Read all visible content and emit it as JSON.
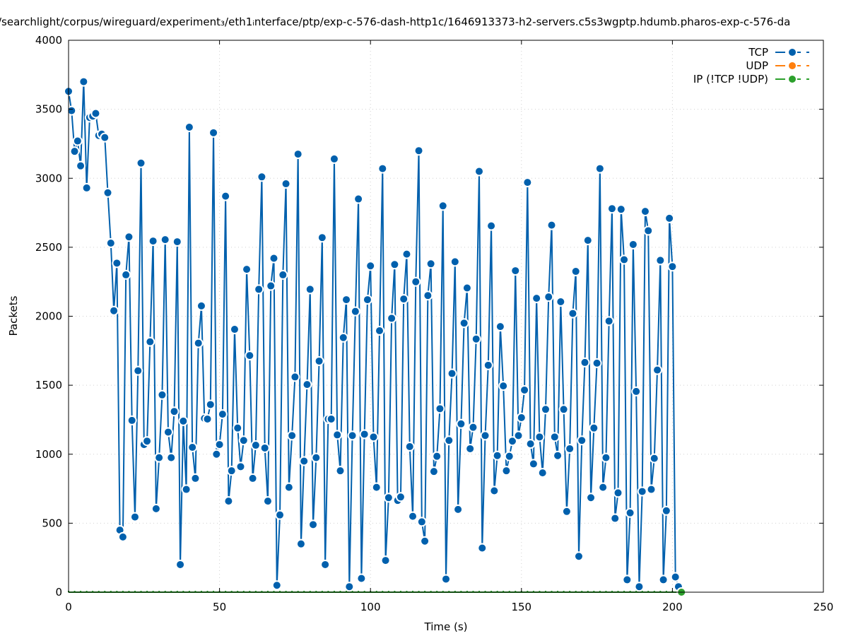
{
  "chart_data": {
    "type": "line",
    "title": "/searchlight/corpus/wireguard/experiment₃/eth1ᵢnterface/ptp/exp-c-576-dash-http1c/1646913373-h2-servers.c5s3wgptp.hdumb.pharos-exp-c-576-da",
    "xlabel": "Time (s)",
    "ylabel": "Packets",
    "xlim": [
      0,
      250
    ],
    "ylim": [
      0,
      4000
    ],
    "xticks": [
      0,
      50,
      100,
      150,
      200,
      250
    ],
    "yticks": [
      0,
      500,
      1000,
      1500,
      2000,
      2500,
      3000,
      3500,
      4000
    ],
    "grid": true,
    "legend_position": "top-right",
    "series": [
      {
        "name": "TCP",
        "color": "#0060ad",
        "x_start": 0,
        "x_step": 1,
        "values": [
          3630,
          3490,
          3195,
          3270,
          3090,
          3700,
          2930,
          3440,
          3450,
          3470,
          3310,
          3320,
          3295,
          2895,
          2530,
          2040,
          2385,
          450,
          400,
          2300,
          2575,
          1245,
          545,
          1605,
          3110,
          1070,
          1095,
          1815,
          2545,
          605,
          975,
          1430,
          2555,
          1160,
          975,
          1310,
          2540,
          200,
          1240,
          745,
          3370,
          1050,
          825,
          1805,
          2075,
          1260,
          1255,
          1360,
          3330,
          1000,
          1070,
          1290,
          2870,
          660,
          880,
          1905,
          1190,
          910,
          1100,
          2340,
          1715,
          825,
          1065,
          2195,
          3010,
          1045,
          660,
          2220,
          2420,
          50,
          560,
          2300,
          2960,
          760,
          1135,
          1560,
          3175,
          350,
          950,
          1505,
          2195,
          490,
          975,
          1675,
          2570,
          200,
          1255,
          1255,
          3140,
          1140,
          880,
          1845,
          2120,
          40,
          1135,
          2035,
          2850,
          100,
          1145,
          2120,
          2365,
          1125,
          760,
          1895,
          3070,
          230,
          685,
          1985,
          2375,
          665,
          690,
          2125,
          2450,
          1055,
          550,
          2250,
          3200,
          510,
          370,
          2150,
          2380,
          875,
          985,
          1330,
          2800,
          95,
          1100,
          1585,
          2395,
          600,
          1220,
          1950,
          2205,
          1040,
          1195,
          1835,
          3050,
          320,
          1135,
          1645,
          2655,
          735,
          990,
          1925,
          1495,
          880,
          985,
          1095,
          2330,
          1135,
          1265,
          1465,
          2970,
          1075,
          930,
          2130,
          1125,
          865,
          1325,
          2140,
          2660,
          1125,
          990,
          2105,
          1325,
          585,
          1040,
          2020,
          2325,
          260,
          1100,
          1665,
          2550,
          685,
          1190,
          1660,
          3070,
          760,
          975,
          1965,
          2780,
          535,
          720,
          2775,
          2410,
          90,
          575,
          2520,
          1455,
          40,
          730,
          2760,
          2620,
          745,
          970,
          1610,
          2405,
          90,
          590,
          2710,
          2360,
          110,
          40
        ]
      },
      {
        "name": "UDP",
        "color": "#ff7f0e",
        "x_start": 0,
        "x_step": 1,
        "values": []
      },
      {
        "name": "IP (!TCP  !UDP)",
        "color": "#2ca02c",
        "x_start": 0,
        "x_step": 1,
        "values_constant": 0,
        "x_end": 203
      }
    ]
  }
}
